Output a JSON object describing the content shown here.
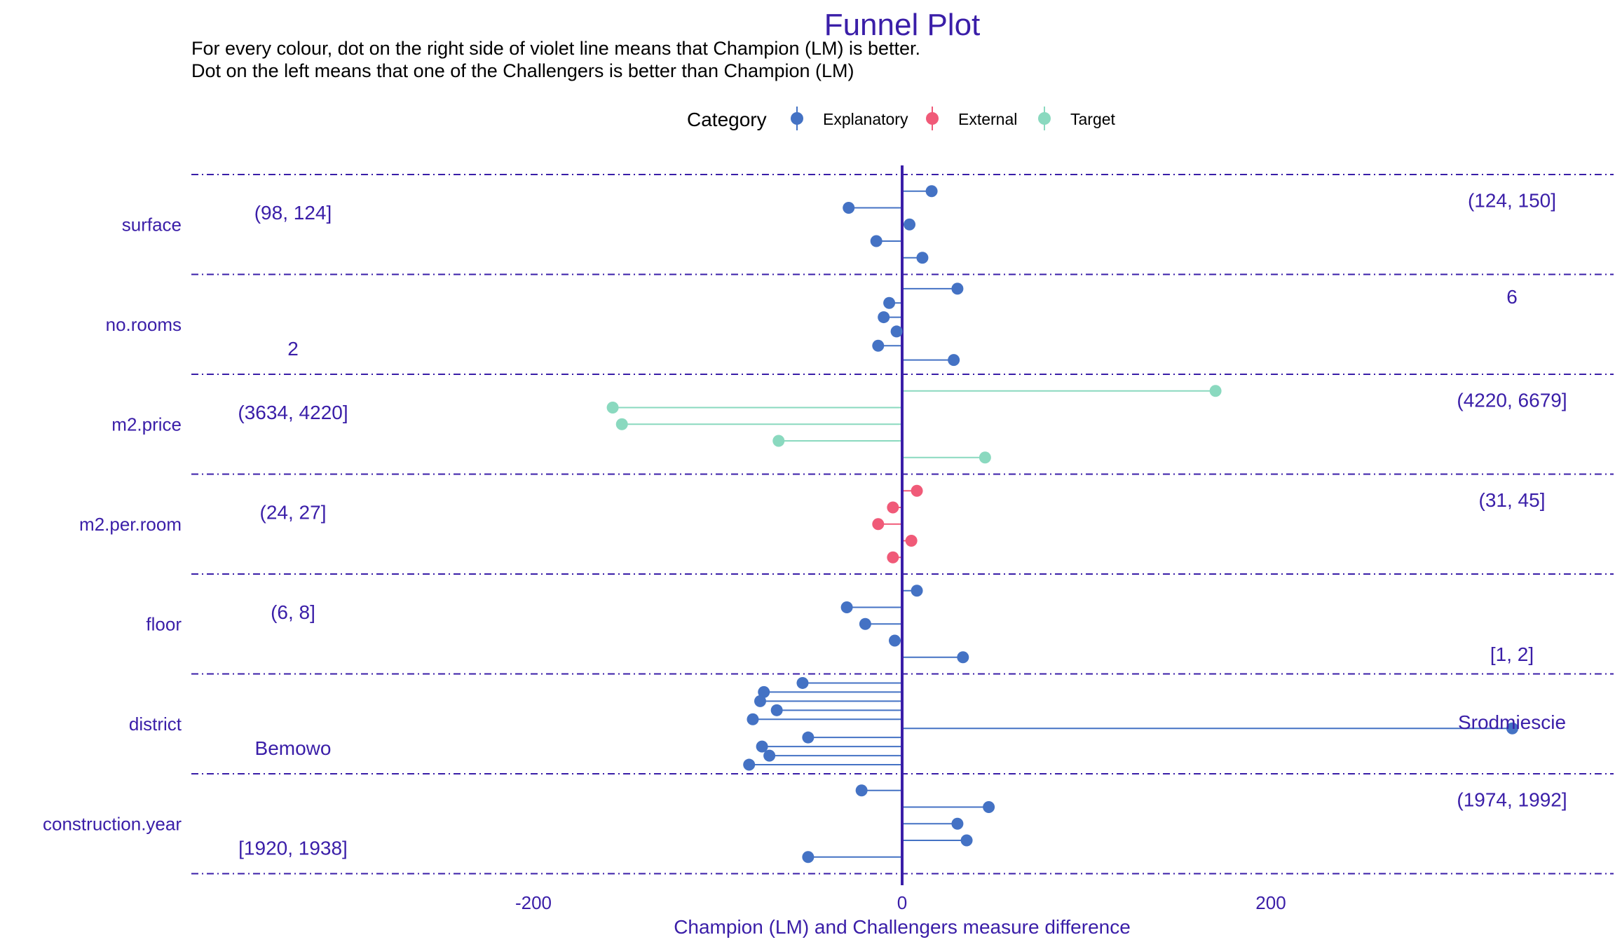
{
  "chart_data": {
    "type": "dot-lollipop",
    "title": "Funnel Plot",
    "subtitle_lines": [
      "For every colour, dot on the right side of violet line means that Champion (LM) is better.",
      "Dot on the left means that one of the Challengers is better than Champion (LM)"
    ],
    "xlabel": "Champion (LM) and Challengers measure difference",
    "ylabel": "",
    "xlim": [
      -385,
      385
    ],
    "xticks": [
      -200,
      0,
      200
    ],
    "legend": {
      "title": "Category",
      "placement": "top",
      "items": [
        {
          "name": "Explanatory",
          "color": "#4472c4"
        },
        {
          "name": "External",
          "color": "#f05a78"
        },
        {
          "name": "Target",
          "color": "#8ad9bf"
        }
      ]
    },
    "zero_line_color": "#3a1ea8",
    "groups": [
      {
        "variable": "surface",
        "min_label": "(98, 124]",
        "max_label": "(124, 150]",
        "category": "Explanatory",
        "values": [
          16,
          -29,
          4,
          -14,
          11
        ]
      },
      {
        "variable": "no.rooms",
        "min_label": "2",
        "max_label": "6",
        "category": "Explanatory",
        "values": [
          30,
          -7,
          -10,
          -3,
          -13,
          28
        ]
      },
      {
        "variable": "m2.price",
        "min_label": "(3634, 4220]",
        "max_label": "(4220, 6679]",
        "category": "Target",
        "values": [
          170,
          -157,
          -152,
          -67,
          45
        ]
      },
      {
        "variable": "m2.per.room",
        "min_label": "(24, 27]",
        "max_label": "(31, 45]",
        "category": "External",
        "values": [
          8,
          -5,
          -13,
          5,
          -5
        ]
      },
      {
        "variable": "floor",
        "min_label": "(6, 8]",
        "max_label": "[1, 2]",
        "category": "Explanatory",
        "values": [
          8,
          -30,
          -20,
          -4,
          33
        ]
      },
      {
        "variable": "district",
        "min_label": "Bemowo",
        "max_label": "Srodmiescie",
        "category": "Explanatory",
        "values": [
          -54,
          -75,
          -77,
          -68,
          -81,
          331,
          -51,
          -76,
          -72,
          -83
        ]
      },
      {
        "variable": "construction.year",
        "min_label": "[1920, 1938]",
        "max_label": "(1974, 1992]",
        "category": "Explanatory",
        "values": [
          -22,
          47,
          30,
          35,
          -51
        ]
      }
    ]
  }
}
